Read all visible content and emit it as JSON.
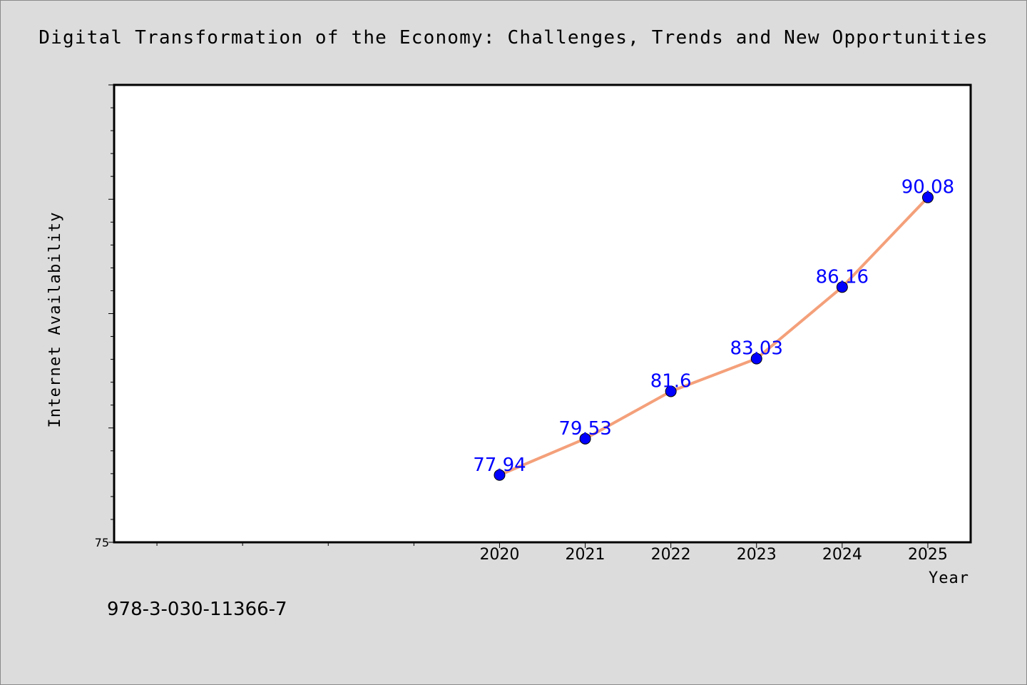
{
  "chart_data": {
    "type": "line",
    "title": "Digital Transformation of the Economy: Challenges, Trends and New Opportunities",
    "xlabel": "Year",
    "ylabel": "Internet Availability",
    "footnote": "978-3-030-11366-7",
    "x": [
      2020,
      2021,
      2022,
      2023,
      2024,
      2025
    ],
    "x_tick_labels": [
      "2020",
      "2021",
      "2022",
      "2023",
      "2024",
      "2025"
    ],
    "x_range": [
      2015.5,
      2025.5
    ],
    "y_range": [
      75,
      95
    ],
    "y_tick_labels": [
      "75"
    ],
    "series": [
      {
        "values": [
          77.94,
          79.53,
          81.6,
          83.03,
          86.16,
          90.08
        ],
        "labels": [
          "77.94",
          "79.53",
          "81.6",
          "83.03",
          "86.16",
          "90.08"
        ],
        "line_color": "#f4a07a",
        "marker_color": "#0000ff"
      }
    ],
    "grid": false,
    "legend": "none"
  }
}
